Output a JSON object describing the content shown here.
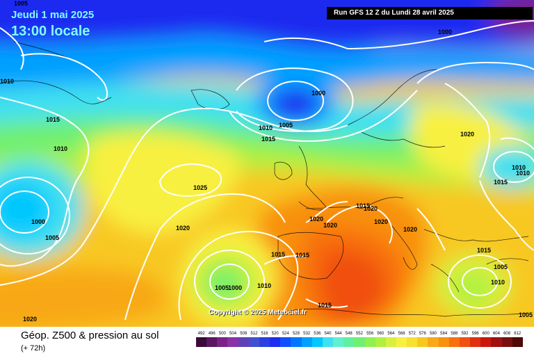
{
  "header": {
    "date": "Jeudi 1 mai 2025",
    "time": "13:00 locale",
    "run": "Run GFS 12 Z du Lundi 28 avril 2025"
  },
  "copyright": "Copyright © 2025 Meteociel.fr",
  "footer": {
    "title": "Géop. Z500 & pression au sol",
    "subtitle": "(+ 72h)"
  },
  "legend": {
    "values": [
      "492",
      "496",
      "500",
      "504",
      "508",
      "512",
      "516",
      "520",
      "524",
      "528",
      "532",
      "536",
      "540",
      "544",
      "548",
      "552",
      "556",
      "560",
      "564",
      "568",
      "572",
      "576",
      "580",
      "584",
      "588",
      "592",
      "596",
      "600",
      "604",
      "608",
      "612"
    ],
    "colors": [
      "#3a0a3a",
      "#5a1660",
      "#7a2288",
      "#8c30a8",
      "#6040b8",
      "#4050d0",
      "#2a40e0",
      "#1c2cf0",
      "#1050ff",
      "#0078ff",
      "#00a0ff",
      "#00c8ff",
      "#40e0f0",
      "#60f0d0",
      "#60f0a0",
      "#70f070",
      "#90f050",
      "#b0f040",
      "#d8f040",
      "#f8f040",
      "#f8e030",
      "#f8c820",
      "#f8a818",
      "#f89010",
      "#f87010",
      "#f05010",
      "#e03010",
      "#c81810",
      "#a01010",
      "#781010",
      "#500808"
    ]
  },
  "isobars": [
    {
      "value": "1005",
      "pos": "top-left"
    },
    {
      "value": "1010",
      "pos": "west"
    },
    {
      "value": "1015",
      "pos": "west-atlantic"
    },
    {
      "value": "1010",
      "pos": "mid-atlantic"
    },
    {
      "value": "1000",
      "pos": "low-west"
    },
    {
      "value": "1005",
      "pos": "low-west-south"
    },
    {
      "value": "1025",
      "pos": "azores-high"
    },
    {
      "value": "1020",
      "pos": "south-atlantic"
    },
    {
      "value": "1020",
      "pos": "bottom-left"
    },
    {
      "value": "1005",
      "pos": "iberian-low"
    },
    {
      "value": "1000",
      "pos": "iberian-low-center"
    },
    {
      "value": "1010",
      "pos": "iberian-low-east"
    },
    {
      "value": "1000",
      "pos": "north-low"
    },
    {
      "value": "1010",
      "pos": "north-low-south"
    },
    {
      "value": "1005",
      "pos": "north-low-south-2"
    },
    {
      "value": "1015",
      "pos": "north-low-south-3"
    },
    {
      "value": "1000",
      "pos": "top-right"
    },
    {
      "value": "1020",
      "pos": "scandinavia"
    },
    {
      "value": "1010",
      "pos": "east-1"
    },
    {
      "value": "1010",
      "pos": "east-2"
    },
    {
      "value": "1015",
      "pos": "east-3"
    },
    {
      "value": "1015",
      "pos": "alps-w"
    },
    {
      "value": "1020",
      "pos": "alps-1"
    },
    {
      "value": "1020",
      "pos": "france-1"
    },
    {
      "value": "1020",
      "pos": "france-2"
    },
    {
      "value": "1020",
      "pos": "alps-2"
    },
    {
      "value": "1020",
      "pos": "italy"
    },
    {
      "value": "1015",
      "pos": "spain-1"
    },
    {
      "value": "1015",
      "pos": "spain-2"
    },
    {
      "value": "1015",
      "pos": "med-south"
    },
    {
      "value": "1015",
      "pos": "balkans"
    },
    {
      "value": "1005",
      "pos": "turkey-1"
    },
    {
      "value": "1010",
      "pos": "turkey-2"
    },
    {
      "value": "1005",
      "pos": "turkey-3"
    },
    {
      "value": "1020",
      "pos": "central-europe"
    }
  ]
}
